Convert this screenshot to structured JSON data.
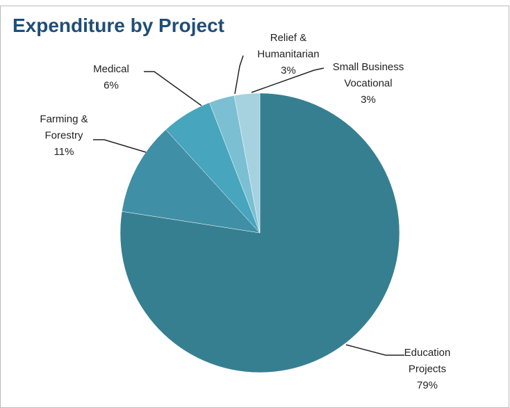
{
  "chart_data": {
    "type": "pie",
    "title": "Expenditure by Project",
    "categories": [
      [
        "Education",
        "Projects"
      ],
      [
        "Farming &",
        "Forestry"
      ],
      [
        "Medical"
      ],
      [
        "Relief &",
        "Humanitarian"
      ],
      [
        "Small Business",
        "Vocational"
      ]
    ],
    "values": [
      79,
      11,
      6,
      3,
      3
    ],
    "value_labels": [
      "79%",
      "11%",
      "6%",
      "3%",
      "3%"
    ],
    "colors": [
      "#367f91",
      "#3f8fa6",
      "#47a5bd",
      "#7bbfd3",
      "#a6d2e0"
    ]
  }
}
